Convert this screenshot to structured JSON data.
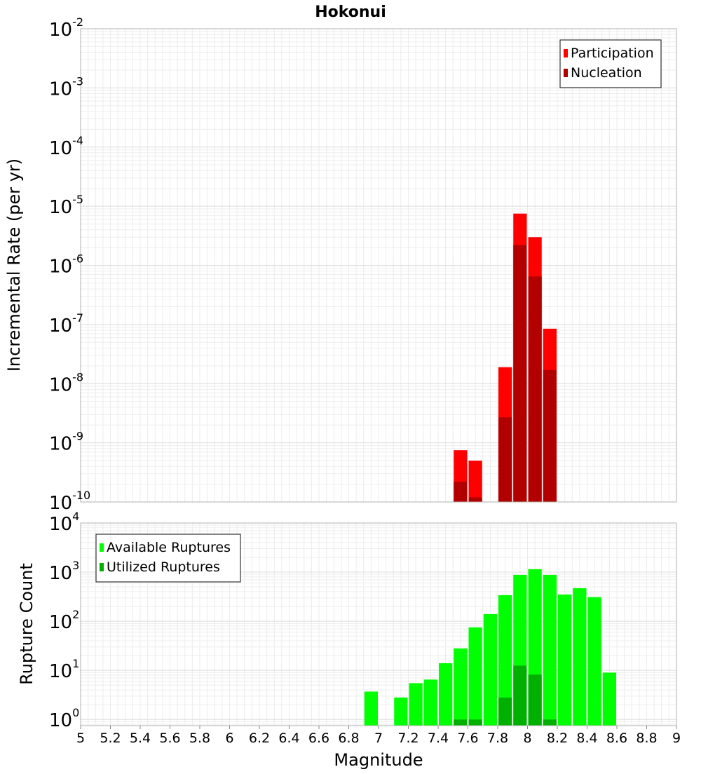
{
  "chart_data": [
    {
      "type": "bar",
      "title": "Hokonui",
      "xlabel": "",
      "ylabel": "Incremental Rate (per yr)",
      "xlim": [
        5,
        9
      ],
      "ylim": [
        1e-10,
        0.01
      ],
      "yscale": "log",
      "grid": true,
      "bar_width": 0.1,
      "legend_position": "top-right",
      "y_ticks": [
        {
          "base": "10",
          "exp": "-10"
        },
        {
          "base": "10",
          "exp": "-9"
        },
        {
          "base": "10",
          "exp": "-8"
        },
        {
          "base": "10",
          "exp": "-7"
        },
        {
          "base": "10",
          "exp": "-6"
        },
        {
          "base": "10",
          "exp": "-5"
        },
        {
          "base": "10",
          "exp": "-4"
        },
        {
          "base": "10",
          "exp": "-3"
        },
        {
          "base": "10",
          "exp": "-2"
        }
      ],
      "series": [
        {
          "name": "Participation",
          "color": "#ff0000",
          "x": [
            7.55,
            7.65,
            7.85,
            7.95,
            8.05,
            8.15
          ],
          "values": [
            7.5e-10,
            5e-10,
            1.9e-08,
            7.5e-06,
            3e-06,
            8.5e-08
          ]
        },
        {
          "name": "Nucleation",
          "color": "#b20000",
          "x": [
            7.55,
            7.65,
            7.85,
            7.95,
            8.05,
            8.15
          ],
          "values": [
            2.2e-10,
            1.2e-10,
            2.7e-09,
            2.2e-06,
            6.5e-07,
            1.7e-08
          ]
        }
      ]
    },
    {
      "type": "bar",
      "title": "",
      "xlabel": "Magnitude",
      "ylabel": "Rupture Count",
      "xlim": [
        5,
        9
      ],
      "ylim": [
        0.75,
        10000
      ],
      "yscale": "log",
      "grid": true,
      "bar_width": 0.1,
      "legend_position": "top-left",
      "x_ticks": [
        "5",
        "5.2",
        "5.4",
        "5.6",
        "5.8",
        "6",
        "6.2",
        "6.4",
        "6.6",
        "6.8",
        "7",
        "7.2",
        "7.4",
        "7.6",
        "7.8",
        "8",
        "8.2",
        "8.4",
        "8.6",
        "8.8",
        "9"
      ],
      "y_ticks": [
        {
          "base": "10",
          "exp": "0"
        },
        {
          "base": "10",
          "exp": "1"
        },
        {
          "base": "10",
          "exp": "2"
        },
        {
          "base": "10",
          "exp": "3"
        },
        {
          "base": "10",
          "exp": "4"
        }
      ],
      "series": [
        {
          "name": "Available Ruptures",
          "color": "#00ff00",
          "x": [
            6.95,
            7.15,
            7.25,
            7.35,
            7.45,
            7.55,
            7.65,
            7.75,
            7.85,
            7.95,
            8.05,
            8.15,
            8.25,
            8.35,
            8.45,
            8.55
          ],
          "values": [
            3.7,
            2.8,
            5.5,
            6.5,
            14,
            28,
            75,
            140,
            340,
            880,
            1150,
            880,
            350,
            470,
            310,
            9
          ]
        },
        {
          "name": "Utilized Ruptures",
          "color": "#00b000",
          "x": [
            7.55,
            7.65,
            7.85,
            7.95,
            8.05,
            8.15
          ],
          "values": [
            1,
            1,
            2.8,
            12.5,
            8.2,
            1
          ]
        }
      ]
    }
  ]
}
